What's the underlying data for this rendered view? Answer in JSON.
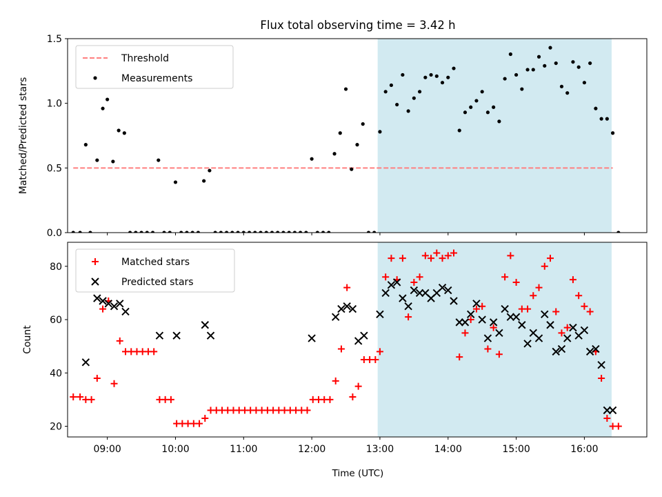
{
  "figure": {
    "title": "Flux total observing time = 3.42 h",
    "xlabel": "Time (UTC)"
  },
  "chart_data": [
    {
      "type": "scatter",
      "ylabel": "Matched/Predicted stars",
      "ylim": [
        0,
        1.5
      ],
      "yticks": [
        "0.0",
        "0.5",
        "1.0",
        "1.5"
      ],
      "xlim": [
        "08:25",
        "16:55"
      ],
      "xticks": [],
      "shaded_region": {
        "start": "12:58",
        "end": "16:24",
        "color": "#add8e6"
      },
      "threshold": {
        "name": "Threshold",
        "value": 0.5,
        "start": "08:30",
        "end": "16:25",
        "color": "#ff7f7f"
      },
      "legend": {
        "placement": "upper-left",
        "entries": [
          "Threshold",
          "Measurements"
        ]
      },
      "series": [
        {
          "name": "Measurements",
          "marker": "dot",
          "color": "#000000",
          "points": [
            [
              "08:30",
              0.0
            ],
            [
              "08:36",
              0.0
            ],
            [
              "08:45",
              0.0
            ],
            [
              "08:41",
              0.68
            ],
            [
              "08:51",
              0.56
            ],
            [
              "08:56",
              0.96
            ],
            [
              "09:00",
              1.03
            ],
            [
              "09:05",
              0.55
            ],
            [
              "09:10",
              0.79
            ],
            [
              "09:15",
              0.77
            ],
            [
              "09:20",
              0.0
            ],
            [
              "09:25",
              0.0
            ],
            [
              "09:30",
              0.0
            ],
            [
              "09:35",
              0.0
            ],
            [
              "09:40",
              0.0
            ],
            [
              "09:45",
              0.56
            ],
            [
              "09:50",
              0.0
            ],
            [
              "09:55",
              0.0
            ],
            [
              "10:00",
              0.39
            ],
            [
              "10:05",
              0.0
            ],
            [
              "10:10",
              0.0
            ],
            [
              "10:15",
              0.0
            ],
            [
              "10:20",
              0.0
            ],
            [
              "10:25",
              0.4
            ],
            [
              "10:30",
              0.48
            ],
            [
              "10:35",
              0.0
            ],
            [
              "10:40",
              0.0
            ],
            [
              "10:45",
              0.0
            ],
            [
              "10:50",
              0.0
            ],
            [
              "10:55",
              0.0
            ],
            [
              "11:00",
              0.0
            ],
            [
              "11:05",
              0.0
            ],
            [
              "11:10",
              0.0
            ],
            [
              "11:15",
              0.0
            ],
            [
              "11:20",
              0.0
            ],
            [
              "11:25",
              0.0
            ],
            [
              "11:30",
              0.0
            ],
            [
              "11:35",
              0.0
            ],
            [
              "11:40",
              0.0
            ],
            [
              "11:45",
              0.0
            ],
            [
              "11:50",
              0.0
            ],
            [
              "11:55",
              0.0
            ],
            [
              "12:00",
              0.57
            ],
            [
              "12:05",
              0.0
            ],
            [
              "12:10",
              0.0
            ],
            [
              "12:15",
              0.0
            ],
            [
              "12:20",
              0.61
            ],
            [
              "12:25",
              0.77
            ],
            [
              "12:30",
              1.11
            ],
            [
              "12:35",
              0.49
            ],
            [
              "12:40",
              0.68
            ],
            [
              "12:45",
              0.84
            ],
            [
              "12:50",
              0.0
            ],
            [
              "12:55",
              0.0
            ],
            [
              "13:00",
              0.78
            ],
            [
              "13:05",
              1.09
            ],
            [
              "13:10",
              1.14
            ],
            [
              "13:15",
              0.99
            ],
            [
              "13:20",
              1.22
            ],
            [
              "13:25",
              0.94
            ],
            [
              "13:30",
              1.04
            ],
            [
              "13:35",
              1.09
            ],
            [
              "13:40",
              1.2
            ],
            [
              "13:45",
              1.22
            ],
            [
              "13:50",
              1.21
            ],
            [
              "13:55",
              1.16
            ],
            [
              "14:00",
              1.2
            ],
            [
              "14:05",
              1.27
            ],
            [
              "14:10",
              0.79
            ],
            [
              "14:15",
              0.93
            ],
            [
              "14:20",
              0.97
            ],
            [
              "14:25",
              1.02
            ],
            [
              "14:30",
              1.09
            ],
            [
              "14:35",
              0.93
            ],
            [
              "14:40",
              0.97
            ],
            [
              "14:45",
              0.86
            ],
            [
              "14:50",
              1.19
            ],
            [
              "14:55",
              1.38
            ],
            [
              "15:00",
              1.22
            ],
            [
              "15:05",
              1.11
            ],
            [
              "15:10",
              1.26
            ],
            [
              "15:15",
              1.26
            ],
            [
              "15:20",
              1.36
            ],
            [
              "15:25",
              1.29
            ],
            [
              "15:30",
              1.43
            ],
            [
              "15:35",
              1.31
            ],
            [
              "15:40",
              1.13
            ],
            [
              "15:45",
              1.08
            ],
            [
              "15:50",
              1.32
            ],
            [
              "15:55",
              1.28
            ],
            [
              "16:00",
              1.16
            ],
            [
              "16:05",
              1.31
            ],
            [
              "16:10",
              0.96
            ],
            [
              "16:15",
              0.88
            ],
            [
              "16:20",
              0.88
            ],
            [
              "16:25",
              0.77
            ],
            [
              "16:30",
              0.0
            ]
          ]
        }
      ]
    },
    {
      "type": "scatter",
      "ylabel": "Count",
      "ylim": [
        16,
        89
      ],
      "yticks": [
        "20",
        "40",
        "60",
        "80"
      ],
      "xlim": [
        "08:25",
        "16:55"
      ],
      "xticks": [
        "09:00",
        "10:00",
        "11:00",
        "12:00",
        "13:00",
        "14:00",
        "15:00",
        "16:00"
      ],
      "shaded_region": {
        "start": "12:58",
        "end": "16:24",
        "color": "#add8e6"
      },
      "legend": {
        "placement": "upper-left",
        "entries": [
          "Matched stars",
          "Predicted stars"
        ]
      },
      "series": [
        {
          "name": "Matched stars",
          "marker": "plus",
          "color": "#ff0000",
          "points": [
            [
              "08:30",
              31
            ],
            [
              "08:36",
              31
            ],
            [
              "08:41",
              30
            ],
            [
              "08:46",
              30
            ],
            [
              "08:51",
              38
            ],
            [
              "08:56",
              64
            ],
            [
              "09:01",
              67
            ],
            [
              "09:06",
              36
            ],
            [
              "09:11",
              52
            ],
            [
              "09:16",
              48
            ],
            [
              "09:21",
              48
            ],
            [
              "09:26",
              48
            ],
            [
              "09:31",
              48
            ],
            [
              "09:36",
              48
            ],
            [
              "09:41",
              48
            ],
            [
              "09:46",
              30
            ],
            [
              "09:51",
              30
            ],
            [
              "09:56",
              30
            ],
            [
              "10:01",
              21
            ],
            [
              "10:06",
              21
            ],
            [
              "10:11",
              21
            ],
            [
              "10:16",
              21
            ],
            [
              "10:21",
              21
            ],
            [
              "10:26",
              23
            ],
            [
              "10:31",
              26
            ],
            [
              "10:36",
              26
            ],
            [
              "10:41",
              26
            ],
            [
              "10:46",
              26
            ],
            [
              "10:51",
              26
            ],
            [
              "10:56",
              26
            ],
            [
              "11:01",
              26
            ],
            [
              "11:06",
              26
            ],
            [
              "11:11",
              26
            ],
            [
              "11:16",
              26
            ],
            [
              "11:21",
              26
            ],
            [
              "11:26",
              26
            ],
            [
              "11:31",
              26
            ],
            [
              "11:36",
              26
            ],
            [
              "11:41",
              26
            ],
            [
              "11:46",
              26
            ],
            [
              "11:51",
              26
            ],
            [
              "11:56",
              26
            ],
            [
              "12:01",
              30
            ],
            [
              "12:06",
              30
            ],
            [
              "12:11",
              30
            ],
            [
              "12:16",
              30
            ],
            [
              "12:21",
              37
            ],
            [
              "12:26",
              49
            ],
            [
              "12:31",
              72
            ],
            [
              "12:36",
              31
            ],
            [
              "12:41",
              35
            ],
            [
              "12:46",
              45
            ],
            [
              "12:51",
              45
            ],
            [
              "12:56",
              45
            ],
            [
              "13:00",
              48
            ],
            [
              "13:05",
              76
            ],
            [
              "13:10",
              83
            ],
            [
              "13:15",
              75
            ],
            [
              "13:20",
              83
            ],
            [
              "13:25",
              61
            ],
            [
              "13:30",
              74
            ],
            [
              "13:35",
              76
            ],
            [
              "13:40",
              84
            ],
            [
              "13:45",
              83
            ],
            [
              "13:50",
              85
            ],
            [
              "13:55",
              83
            ],
            [
              "14:00",
              84
            ],
            [
              "14:05",
              85
            ],
            [
              "14:10",
              46
            ],
            [
              "14:15",
              55
            ],
            [
              "14:20",
              60
            ],
            [
              "14:25",
              64
            ],
            [
              "14:30",
              65
            ],
            [
              "14:35",
              49
            ],
            [
              "14:40",
              57
            ],
            [
              "14:45",
              47
            ],
            [
              "14:50",
              76
            ],
            [
              "14:55",
              84
            ],
            [
              "15:00",
              74
            ],
            [
              "15:05",
              64
            ],
            [
              "15:10",
              64
            ],
            [
              "15:15",
              69
            ],
            [
              "15:20",
              72
            ],
            [
              "15:25",
              80
            ],
            [
              "15:30",
              83
            ],
            [
              "15:35",
              63
            ],
            [
              "15:40",
              55
            ],
            [
              "15:45",
              57
            ],
            [
              "15:50",
              75
            ],
            [
              "15:55",
              69
            ],
            [
              "16:00",
              65
            ],
            [
              "16:05",
              63
            ],
            [
              "16:10",
              48
            ],
            [
              "16:15",
              38
            ],
            [
              "16:20",
              23
            ],
            [
              "16:25",
              20
            ],
            [
              "16:30",
              20
            ]
          ]
        },
        {
          "name": "Predicted stars",
          "marker": "x",
          "color": "#000000",
          "points": [
            [
              "08:41",
              44
            ],
            [
              "08:51",
              68
            ],
            [
              "08:56",
              67
            ],
            [
              "09:01",
              66
            ],
            [
              "09:06",
              65
            ],
            [
              "09:11",
              66
            ],
            [
              "09:16",
              63
            ],
            [
              "09:46",
              54
            ],
            [
              "10:01",
              54
            ],
            [
              "10:26",
              58
            ],
            [
              "10:31",
              54
            ],
            [
              "12:00",
              53
            ],
            [
              "12:21",
              61
            ],
            [
              "12:26",
              64
            ],
            [
              "12:31",
              65
            ],
            [
              "12:36",
              64
            ],
            [
              "12:41",
              52
            ],
            [
              "12:46",
              54
            ],
            [
              "13:00",
              62
            ],
            [
              "13:05",
              70
            ],
            [
              "13:10",
              73
            ],
            [
              "13:15",
              74
            ],
            [
              "13:20",
              68
            ],
            [
              "13:25",
              65
            ],
            [
              "13:30",
              71
            ],
            [
              "13:35",
              70
            ],
            [
              "13:40",
              70
            ],
            [
              "13:45",
              68
            ],
            [
              "13:50",
              70
            ],
            [
              "13:55",
              72
            ],
            [
              "14:00",
              71
            ],
            [
              "14:05",
              67
            ],
            [
              "14:10",
              59
            ],
            [
              "14:15",
              59
            ],
            [
              "14:20",
              62
            ],
            [
              "14:25",
              66
            ],
            [
              "14:30",
              60
            ],
            [
              "14:35",
              53
            ],
            [
              "14:40",
              59
            ],
            [
              "14:45",
              55
            ],
            [
              "14:50",
              64
            ],
            [
              "14:55",
              61
            ],
            [
              "15:00",
              61
            ],
            [
              "15:05",
              58
            ],
            [
              "15:10",
              51
            ],
            [
              "15:15",
              55
            ],
            [
              "15:20",
              53
            ],
            [
              "15:25",
              62
            ],
            [
              "15:30",
              58
            ],
            [
              "15:35",
              48
            ],
            [
              "15:40",
              49
            ],
            [
              "15:45",
              53
            ],
            [
              "15:50",
              57
            ],
            [
              "15:55",
              54
            ],
            [
              "16:00",
              56
            ],
            [
              "16:05",
              48
            ],
            [
              "16:10",
              49
            ],
            [
              "16:15",
              43
            ],
            [
              "16:20",
              26
            ],
            [
              "16:25",
              26
            ]
          ]
        }
      ]
    }
  ]
}
